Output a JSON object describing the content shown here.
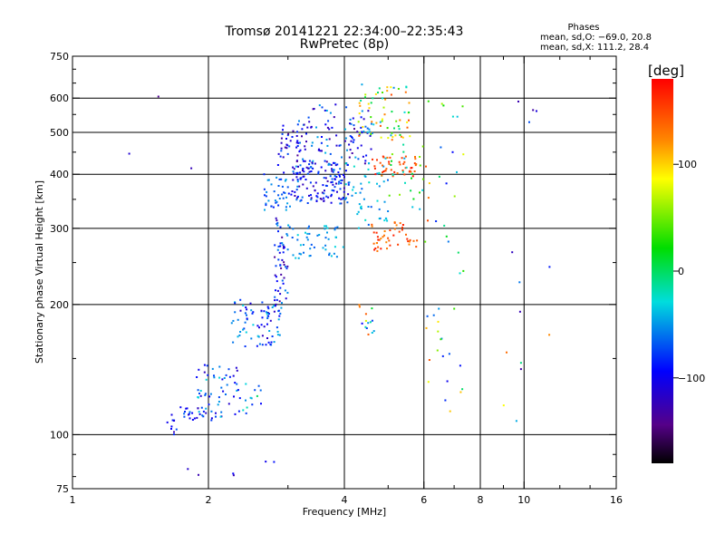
{
  "chart_data": {
    "type": "scatter",
    "title": "Tromsø 20141221 22:34:00–22:35:43",
    "subtitle": "RwPretec (8p)",
    "xlabel": "Frequency [MHz]",
    "ylabel": "Stationary phase Virtual Height [km]",
    "xscale": "log",
    "yscale": "log",
    "xlim": [
      1,
      16
    ],
    "ylim": [
      75,
      750
    ],
    "x_ticks": [
      1,
      2,
      4,
      6,
      8,
      10,
      16
    ],
    "x_tick_labels": [
      "1",
      "2",
      "4",
      "6",
      "8",
      "10",
      "16"
    ],
    "x_minor_ticks": [
      3,
      5,
      7,
      9,
      12,
      14
    ],
    "y_ticks": [
      75,
      100,
      200,
      300,
      400,
      500,
      600,
      750
    ],
    "y_tick_labels": [
      "75",
      "100",
      "200",
      "300",
      "400",
      "500",
      "600",
      "750"
    ],
    "y_minor_ticks": [
      80,
      90,
      150,
      250,
      350,
      450,
      550,
      650,
      700
    ],
    "grid_x": [
      2,
      4,
      6,
      8,
      10
    ],
    "grid_y": [
      100,
      200,
      300,
      400,
      500,
      600
    ],
    "legend": {
      "title": "Phases",
      "line1": "mean, sd,O: −69.0, 20.8",
      "line2": "mean, sd,X: 111.2, 28.4",
      "placement": "top-right"
    },
    "colorbar": {
      "label": "[deg]",
      "range": [
        -180,
        180
      ],
      "ticks": [
        100,
        0,
        -100
      ],
      "tick_labels": [
        "100",
        "0",
        "−100"
      ],
      "colormap": "rainbow (black-purple-blue-cyan-green-yellow-orange-red)"
    },
    "clusters": [
      {
        "xr": [
          1.62,
          1.7
        ],
        "yr": [
          100,
          112
        ],
        "n": 10,
        "pr": [
          -130,
          -70
        ]
      },
      {
        "xr": [
          1.72,
          1.95
        ],
        "yr": [
          108,
          116
        ],
        "n": 18,
        "pr": [
          -130,
          -60
        ]
      },
      {
        "xr": [
          1.88,
          2.35
        ],
        "yr": [
          108,
          145
        ],
        "n": 60,
        "pr": [
          -120,
          -30
        ]
      },
      {
        "xr": [
          2.3,
          2.7
        ],
        "yr": [
          112,
          132
        ],
        "n": 14,
        "pr": [
          -100,
          40
        ]
      },
      {
        "xr": [
          2.25,
          2.9
        ],
        "yr": [
          160,
          205
        ],
        "n": 80,
        "pr": [
          -120,
          -30
        ]
      },
      {
        "xr": [
          2.8,
          3.0
        ],
        "yr": [
          190,
          320
        ],
        "n": 55,
        "pr": [
          -140,
          -50
        ]
      },
      {
        "xr": [
          2.65,
          3.05
        ],
        "yr": [
          330,
          400
        ],
        "n": 40,
        "pr": [
          -90,
          -40
        ]
      },
      {
        "xr": [
          2.85,
          3.2
        ],
        "yr": [
          400,
          520
        ],
        "n": 35,
        "pr": [
          -140,
          -60
        ]
      },
      {
        "xr": [
          3.05,
          4.1
        ],
        "yr": [
          340,
          430
        ],
        "n": 140,
        "pr": [
          -130,
          -50
        ]
      },
      {
        "xr": [
          3.1,
          4.6
        ],
        "yr": [
          420,
          580
        ],
        "n": 110,
        "pr": [
          -140,
          -40
        ]
      },
      {
        "xr": [
          3.0,
          4.0
        ],
        "yr": [
          255,
          310
        ],
        "n": 50,
        "pr": [
          -70,
          -30
        ]
      },
      {
        "xr": [
          4.0,
          5.0
        ],
        "yr": [
          300,
          440
        ],
        "n": 50,
        "pr": [
          -70,
          -20
        ]
      },
      {
        "xr": [
          4.3,
          5.6
        ],
        "yr": [
          480,
          650
        ],
        "n": 70,
        "pr": [
          -60,
          150
        ]
      },
      {
        "xr": [
          4.6,
          5.8
        ],
        "yr": [
          395,
          440
        ],
        "n": 45,
        "pr": [
          130,
          175
        ]
      },
      {
        "xr": [
          4.6,
          5.8
        ],
        "yr": [
          265,
          310
        ],
        "n": 45,
        "pr": [
          120,
          175
        ]
      },
      {
        "xr": [
          5.0,
          6.0
        ],
        "yr": [
          330,
          480
        ],
        "n": 25,
        "pr": [
          -60,
          60
        ]
      },
      {
        "xr": [
          6.0,
          7.4
        ],
        "yr": [
          110,
          600
        ],
        "n": 45,
        "pr": [
          -100,
          150
        ]
      },
      {
        "xr": [
          4.3,
          4.9
        ],
        "yr": [
          170,
          200
        ],
        "n": 14,
        "pr": [
          -100,
          150
        ]
      },
      {
        "xr": [
          9.0,
          11.5
        ],
        "yr": [
          100,
          620
        ],
        "n": 14,
        "pr": [
          -140,
          160
        ]
      },
      {
        "xr": [
          1.3,
          1.85
        ],
        "yr": [
          380,
          610
        ],
        "n": 3,
        "pr": [
          -150,
          -110
        ]
      },
      {
        "xr": [
          1.55,
          2.8
        ],
        "yr": [
          80,
          88
        ],
        "n": 6,
        "pr": [
          -140,
          -80
        ]
      }
    ]
  }
}
